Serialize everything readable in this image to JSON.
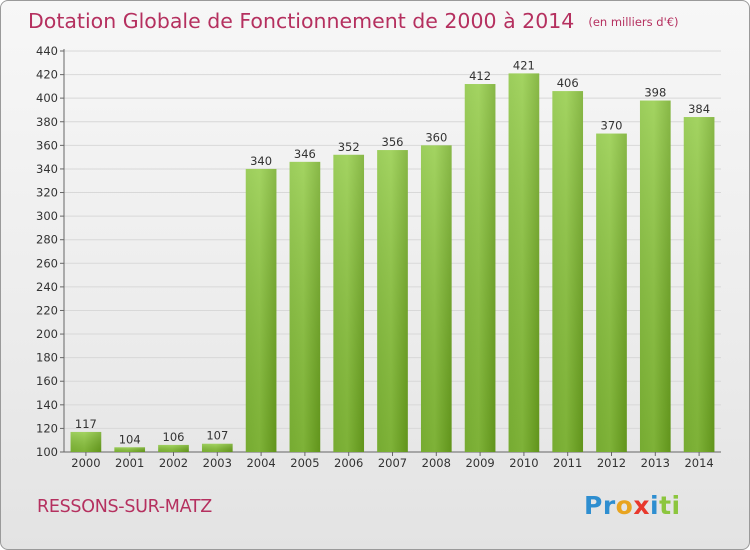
{
  "title": "Dotation Globale de Fonctionnement de 2000 à 2014",
  "title_unit": "(en milliers d'€)",
  "commune": "RESSONS-SUR-MATZ",
  "logo": {
    "letters": [
      "P",
      "r",
      "o",
      "x",
      "i",
      "t",
      "i"
    ],
    "colors": [
      "#2e8ed0",
      "#2e8ed0",
      "#e8a420",
      "#e8382c",
      "#2e8ed0",
      "#8cc63e",
      "#8cc63e"
    ]
  },
  "colors": {
    "title": "#b5305f",
    "bar_light": "#a6dc54",
    "bar_dark": "#67a217",
    "grid": "#d8d8d8"
  },
  "chart_data": {
    "type": "bar",
    "categories": [
      "2000",
      "2001",
      "2002",
      "2003",
      "2004",
      "2005",
      "2006",
      "2007",
      "2008",
      "2009",
      "2010",
      "2011",
      "2012",
      "2013",
      "2014"
    ],
    "values": [
      117,
      104,
      106,
      107,
      340,
      346,
      352,
      356,
      360,
      412,
      421,
      406,
      370,
      398,
      384
    ],
    "ylim": [
      100,
      440
    ],
    "yticks": [
      100,
      120,
      140,
      160,
      180,
      200,
      220,
      240,
      260,
      280,
      300,
      320,
      340,
      360,
      380,
      400,
      420,
      440
    ],
    "xlabel": "",
    "ylabel": "",
    "grid": true
  }
}
